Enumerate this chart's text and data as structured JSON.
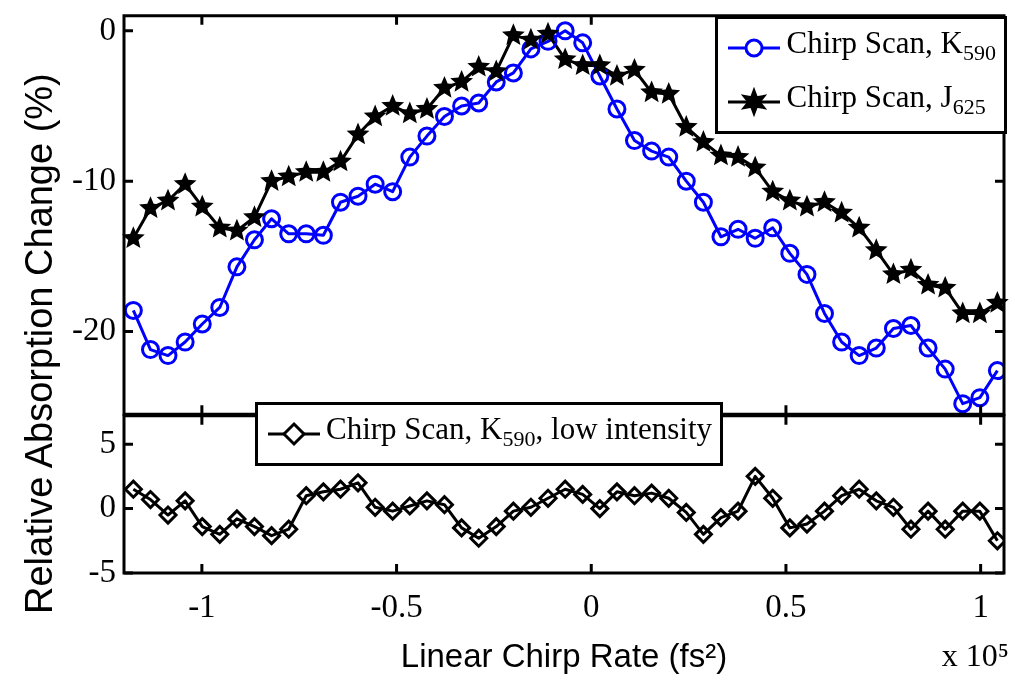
{
  "chart_data": [
    {
      "type": "line",
      "ylabel": "Relative Absorption Change (%)",
      "legend": "top right",
      "tick_labels": "y",
      "x": [
        -1.176,
        -1.132,
        -1.087,
        -1.043,
        -0.999,
        -0.954,
        -0.91,
        -0.865,
        -0.821,
        -0.777,
        -0.732,
        -0.688,
        -0.644,
        -0.599,
        -0.555,
        -0.51,
        -0.466,
        -0.422,
        -0.377,
        -0.333,
        -0.289,
        -0.244,
        -0.2,
        -0.155,
        -0.111,
        -0.067,
        -0.022,
        0.022,
        0.066,
        0.111,
        0.155,
        0.199,
        0.244,
        0.288,
        0.333,
        0.377,
        0.421,
        0.466,
        0.51,
        0.554,
        0.599,
        0.643,
        0.688,
        0.732,
        0.776,
        0.821,
        0.865,
        0.909,
        0.954,
        0.998,
        1.043
      ],
      "xlim": [
        -1.2,
        1.06
      ],
      "xticks": [
        {
          "value": -1,
          "label": null
        },
        {
          "value": -0.5,
          "label": null
        },
        {
          "value": 0,
          "label": null
        },
        {
          "value": 0.5,
          "label": null
        },
        {
          "value": 1,
          "label": null
        }
      ],
      "ylim": [
        -25.5,
        1
      ],
      "yticks": [
        -20,
        -10,
        0
      ],
      "series": [
        {
          "name": "Chirp Scan, K$_{590}$",
          "color": "#0000ff",
          "marker": "circle",
          "values": [
            -18.6,
            -21.2,
            -21.6,
            -20.7,
            -19.5,
            -18.4,
            -15.7,
            -13.9,
            -12.5,
            -13.5,
            -13.5,
            -13.6,
            -11.4,
            -11.0,
            -10.2,
            -10.7,
            -8.4,
            -7.0,
            -5.7,
            -5.0,
            -4.8,
            -3.4,
            -2.8,
            -1.2,
            -0.7,
            0.0,
            -0.8,
            -3.0,
            -5.2,
            -7.3,
            -8.0,
            -8.4,
            -10.0,
            -11.4,
            -13.7,
            -13.2,
            -13.8,
            -13.1,
            -14.8,
            -16.2,
            -18.8,
            -20.7,
            -21.6,
            -21.1,
            -19.8,
            -19.6,
            -21.1,
            -22.5,
            -24.8,
            -24.4,
            -22.6
          ]
        },
        {
          "name": "Chirp Scan, J$_{625}$",
          "color": "#000000",
          "marker": "star",
          "values": [
            -13.8,
            -11.8,
            -11.3,
            -10.2,
            -11.7,
            -13.1,
            -13.3,
            -12.4,
            -10.0,
            -9.7,
            -9.4,
            -9.4,
            -8.7,
            -6.9,
            -5.7,
            -5.0,
            -5.5,
            -5.2,
            -3.8,
            -3.4,
            -2.4,
            -2.7,
            -0.3,
            -0.6,
            -0.2,
            -1.9,
            -2.3,
            -2.3,
            -3.0,
            -2.6,
            -4.1,
            -4.2,
            -6.4,
            -7.4,
            -8.3,
            -8.4,
            -9.1,
            -10.7,
            -11.3,
            -11.7,
            -11.4,
            -12.1,
            -13.1,
            -14.6,
            -16.2,
            -15.9,
            -16.9,
            -17.1,
            -18.8,
            -18.8,
            -18.1
          ]
        }
      ]
    },
    {
      "type": "line",
      "xlabel": "Linear Chirp Rate (fs²)",
      "legend": "top",
      "annotations": [
        "x 10⁵"
      ],
      "x": [
        -1.176,
        -1.132,
        -1.087,
        -1.043,
        -0.999,
        -0.954,
        -0.91,
        -0.865,
        -0.821,
        -0.777,
        -0.732,
        -0.688,
        -0.644,
        -0.599,
        -0.555,
        -0.51,
        -0.466,
        -0.422,
        -0.377,
        -0.333,
        -0.289,
        -0.244,
        -0.2,
        -0.155,
        -0.111,
        -0.067,
        -0.022,
        0.022,
        0.066,
        0.111,
        0.155,
        0.199,
        0.244,
        0.288,
        0.333,
        0.377,
        0.421,
        0.466,
        0.51,
        0.554,
        0.599,
        0.643,
        0.688,
        0.732,
        0.776,
        0.821,
        0.865,
        0.909,
        0.954,
        0.998,
        1.043
      ],
      "xlim": [
        -1.2,
        1.06
      ],
      "xticks": [
        -1,
        -0.5,
        0,
        0.5,
        1
      ],
      "ylim": [
        -5,
        7.2
      ],
      "yticks": [
        -5,
        0,
        5
      ],
      "series": [
        {
          "name": "Chirp Scan, K$_{590}$, low intensity",
          "color": "#000000",
          "marker": "diamond",
          "values": [
            1.5,
            0.7,
            -0.5,
            0.6,
            -1.4,
            -2.0,
            -0.8,
            -1.4,
            -2.1,
            -1.6,
            1.0,
            1.3,
            1.5,
            2.0,
            0.1,
            -0.2,
            0.2,
            0.6,
            0.3,
            -1.5,
            -2.3,
            -1.4,
            -0.2,
            0.1,
            0.8,
            1.5,
            1.1,
            0.0,
            1.3,
            1.0,
            1.2,
            0.8,
            -0.3,
            -2.0,
            -0.7,
            -0.2,
            2.5,
            0.8,
            -1.5,
            -1.2,
            -0.2,
            1.0,
            1.5,
            0.6,
            0.1,
            -1.6,
            -0.2,
            -1.6,
            -0.2,
            -0.2,
            -2.5
          ]
        }
      ]
    }
  ]
}
